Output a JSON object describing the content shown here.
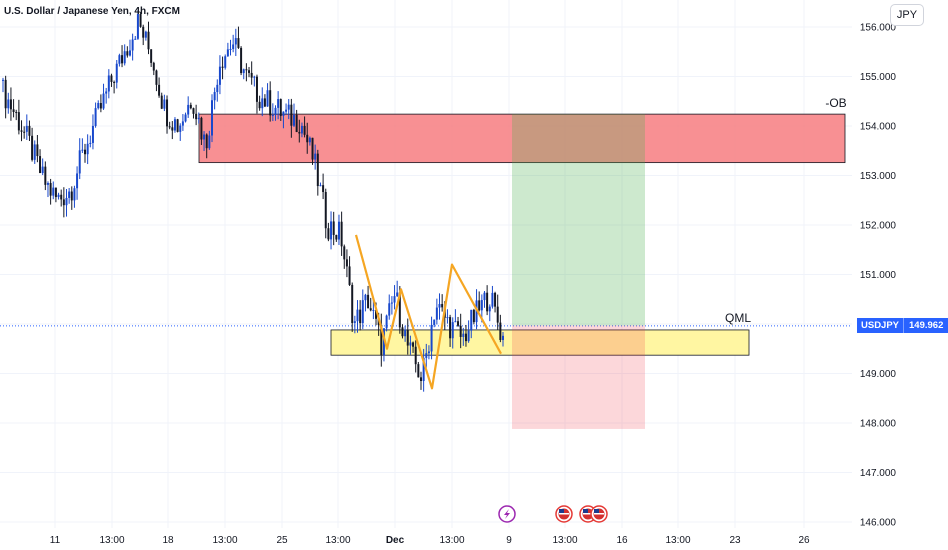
{
  "chart_data": {
    "type": "candlestick",
    "title": "U.S. Dollar / Japanese Yen, 4h, FXCM",
    "symbol": "USDJPY",
    "currency": "JPY",
    "last_price": "149.962",
    "y_ticks": [
      "146.000",
      "147.000",
      "148.000",
      "149.000",
      "150.000",
      "151.000",
      "152.000",
      "153.000",
      "154.000",
      "155.000",
      "156.000"
    ],
    "y_range": [
      145.85,
      156.3
    ],
    "x_ticks": [
      "11",
      "13:00",
      "18",
      "13:00",
      "25",
      "13:00",
      "Dec",
      "13:00",
      "9",
      "13:00",
      "16",
      "13:00",
      "23",
      "26"
    ],
    "zones": [
      {
        "label": "-OB",
        "price_range": [
          153.26,
          154.24
        ],
        "color": "#f77c80"
      },
      {
        "label": "QML",
        "price_range": [
          149.37,
          149.88
        ],
        "color": "#fff59d"
      }
    ],
    "position": {
      "type": "long",
      "entry": 149.97,
      "target": 154.24,
      "stop": 147.88,
      "profit_color": "#c8f7c5",
      "loss_color": "#f9d0d4"
    },
    "closes": [
      154.7,
      154.2,
      153.6,
      152.9,
      152.5,
      152.7,
      153.5,
      154.2,
      154.9,
      155.5,
      156.1,
      155.4,
      154.3,
      154.0,
      154.6,
      153.6,
      155.3,
      155.7,
      155.0,
      154.6,
      154.4,
      154.2,
      154.1,
      153.3,
      152.0,
      151.8,
      150.0,
      150.5,
      149.6,
      150.6,
      149.5,
      148.9,
      150.4,
      150.0,
      149.7,
      150.2,
      150.6,
      149.7
    ],
    "swing_pattern": [
      151.8,
      149.5,
      150.7,
      148.7,
      151.2,
      149.4
    ],
    "event_icons": [
      "lightning-flag",
      "us-flag",
      "us-flag",
      "us-flag"
    ]
  }
}
